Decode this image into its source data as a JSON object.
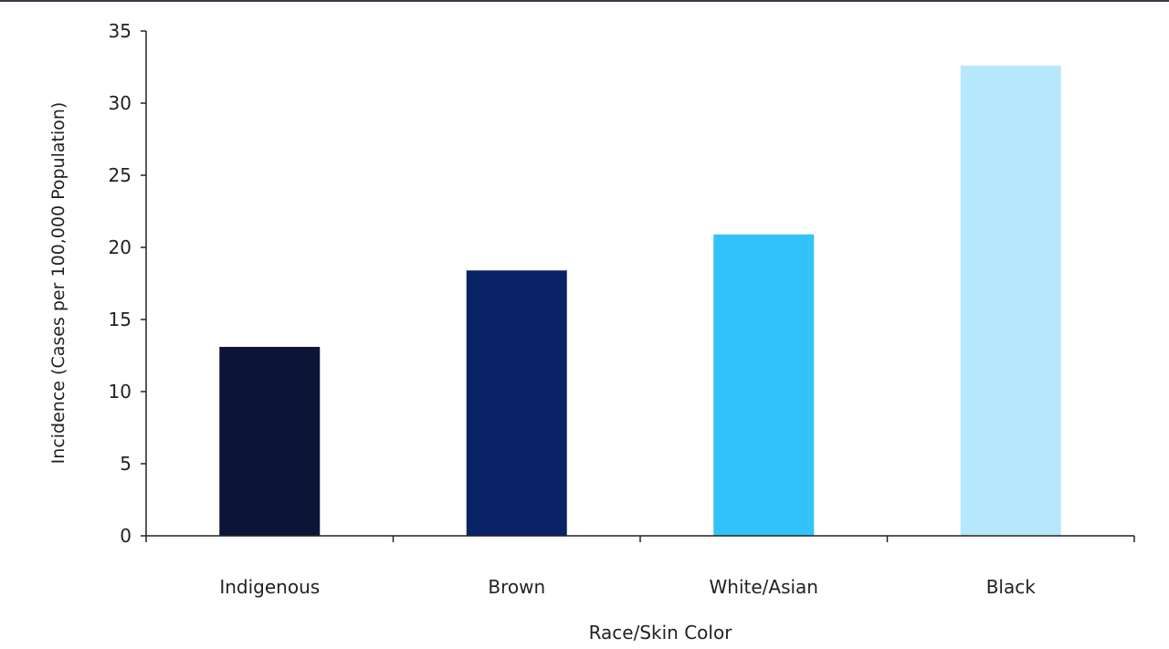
{
  "chart_data": {
    "type": "bar",
    "title": "",
    "xlabel": "Race/Skin Color",
    "ylabel": "Incidence (Cases per 100,000 Population)",
    "categories": [
      "Indigenous",
      "Brown",
      "White/Asian",
      "Black"
    ],
    "values": [
      13.1,
      18.4,
      20.9,
      32.6
    ],
    "colors": [
      "#0c1538",
      "#0a2266",
      "#33c3fc",
      "#b5e8fd"
    ],
    "ylim": [
      0,
      35
    ],
    "yticks": [
      "0",
      "5",
      "10",
      "15",
      "20",
      "25",
      "30",
      "35"
    ],
    "grid": false,
    "legend": "none"
  }
}
